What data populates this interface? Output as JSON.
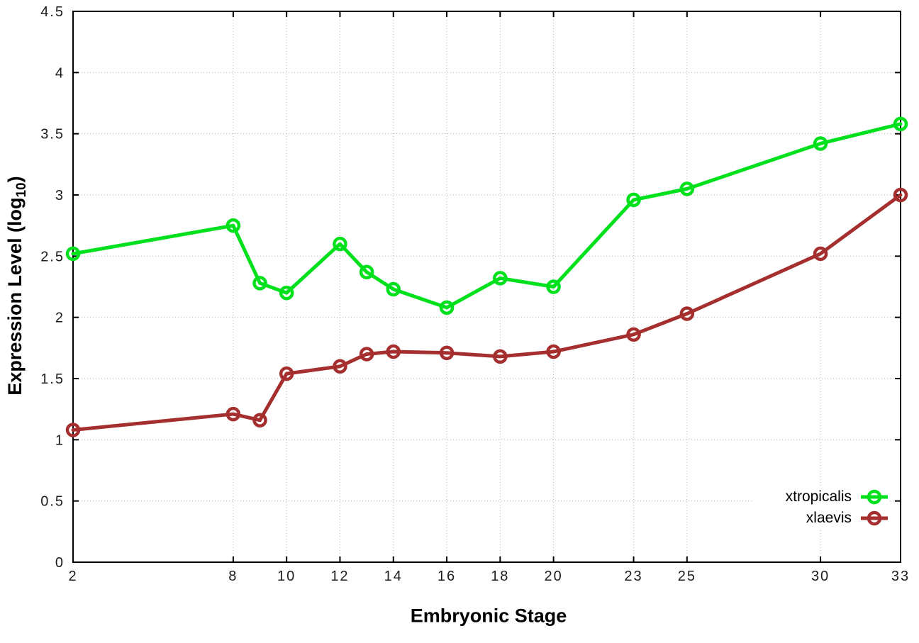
{
  "axis": {
    "xlabel": "Embryonic Stage",
    "ylabel_prefix": "Expression Level (log",
    "ylabel_sub": "10",
    "ylabel_suffix": ")"
  },
  "style": {
    "background": "#ffffff",
    "grid_color": "#b4b4b4",
    "axis_color": "#000000",
    "tick_text_color": "#1c1c1c"
  },
  "chart_data": {
    "type": "line",
    "title": "",
    "xlabel": "Embryonic Stage",
    "ylabel": "Expression Level (log10)",
    "x": [
      2,
      8,
      9,
      10,
      12,
      13,
      14,
      16,
      18,
      20,
      23,
      25,
      30,
      33
    ],
    "series": [
      {
        "name": "xtropicalis",
        "color": "#00e01c",
        "marker": "open-circle",
        "values": [
          2.52,
          2.75,
          2.28,
          2.2,
          2.6,
          2.37,
          2.23,
          2.08,
          2.32,
          2.25,
          2.96,
          3.05,
          3.42,
          3.58
        ]
      },
      {
        "name": "xlaevis",
        "color": "#a52f2f",
        "marker": "open-circle",
        "values": [
          1.08,
          1.21,
          1.16,
          1.54,
          1.6,
          1.7,
          1.72,
          1.71,
          1.68,
          1.72,
          1.86,
          2.03,
          2.52,
          3.0
        ]
      }
    ],
    "xlim": [
      2,
      33
    ],
    "ylim": [
      0,
      4.5
    ],
    "x_ticks": [
      2,
      8,
      10,
      12,
      14,
      16,
      18,
      20,
      23,
      25,
      30,
      33
    ],
    "x_tick_labels": [
      "2",
      "8",
      "10",
      "12",
      "14",
      "16",
      "18",
      "20",
      "23",
      "25",
      "30",
      "33"
    ],
    "y_ticks": [
      0,
      0.5,
      1,
      1.5,
      2,
      2.5,
      3,
      3.5,
      4,
      4.5
    ],
    "y_tick_labels": [
      "0",
      "0.5",
      "1",
      "1.5",
      "2",
      "2.5",
      "3",
      "3.5",
      "4",
      "4.5"
    ],
    "grid": "dotted",
    "legend_position": "inside-bottom-right"
  }
}
